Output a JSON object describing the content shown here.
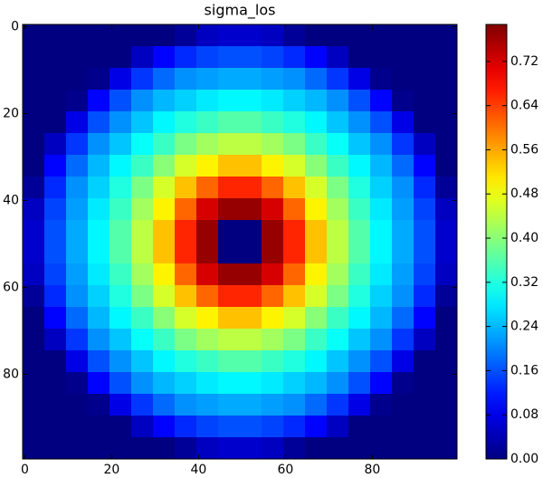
{
  "chart_data": {
    "type": "heatmap",
    "title": "sigma_los",
    "xlim": [
      -0.5,
      99.5
    ],
    "ylim": [
      99.5,
      -0.5
    ],
    "xticks": [
      0,
      20,
      40,
      60,
      80
    ],
    "yticks": [
      0,
      20,
      40,
      60,
      80
    ],
    "colormap": "jet",
    "clim": [
      0,
      0.787
    ],
    "colorbar_ticks": [
      {
        "value": 0,
        "label": "0.00"
      },
      {
        "value": 0.08,
        "label": "0.08"
      },
      {
        "value": 0.16,
        "label": "0.16"
      },
      {
        "value": 0.24,
        "label": "0.24"
      },
      {
        "value": 0.32,
        "label": "0.32"
      },
      {
        "value": 0.4,
        "label": "0.40"
      },
      {
        "value": 0.48,
        "label": "0.48"
      },
      {
        "value": 0.56,
        "label": "0.56"
      },
      {
        "value": 0.64,
        "label": "0.64"
      },
      {
        "value": 0.72,
        "label": "0.72"
      }
    ],
    "values": [
      [
        0,
        0,
        0,
        0,
        0,
        0,
        0,
        0.02,
        0.05,
        0.06,
        0.06,
        0.05,
        0.02,
        0,
        0,
        0,
        0,
        0,
        0,
        0
      ],
      [
        0,
        0,
        0,
        0,
        0,
        0.05,
        0.1,
        0.13,
        0.15,
        0.16,
        0.16,
        0.15,
        0.13,
        0.1,
        0.05,
        0,
        0,
        0,
        0,
        0
      ],
      [
        0,
        0,
        0,
        0.01,
        0.08,
        0.14,
        0.18,
        0.21,
        0.22,
        0.23,
        0.23,
        0.22,
        0.21,
        0.18,
        0.14,
        0.08,
        0.01,
        0,
        0,
        0
      ],
      [
        0,
        0,
        0.01,
        0.1,
        0.16,
        0.21,
        0.24,
        0.26,
        0.28,
        0.29,
        0.29,
        0.28,
        0.26,
        0.24,
        0.21,
        0.16,
        0.1,
        0.01,
        0,
        0
      ],
      [
        0,
        0,
        0.08,
        0.16,
        0.21,
        0.25,
        0.29,
        0.32,
        0.34,
        0.36,
        0.36,
        0.34,
        0.32,
        0.29,
        0.25,
        0.21,
        0.16,
        0.08,
        0,
        0
      ],
      [
        0,
        0.05,
        0.14,
        0.21,
        0.25,
        0.3,
        0.34,
        0.39,
        0.42,
        0.44,
        0.44,
        0.42,
        0.39,
        0.34,
        0.3,
        0.25,
        0.21,
        0.14,
        0.05,
        0
      ],
      [
        0,
        0.1,
        0.18,
        0.24,
        0.29,
        0.34,
        0.4,
        0.46,
        0.5,
        0.54,
        0.54,
        0.5,
        0.46,
        0.4,
        0.34,
        0.29,
        0.24,
        0.18,
        0.1,
        0
      ],
      [
        0.02,
        0.13,
        0.21,
        0.26,
        0.32,
        0.39,
        0.46,
        0.54,
        0.61,
        0.66,
        0.66,
        0.61,
        0.54,
        0.46,
        0.39,
        0.32,
        0.26,
        0.21,
        0.13,
        0.02
      ],
      [
        0.05,
        0.15,
        0.22,
        0.28,
        0.34,
        0.42,
        0.5,
        0.61,
        0.72,
        0.77,
        0.77,
        0.72,
        0.61,
        0.5,
        0.42,
        0.34,
        0.28,
        0.22,
        0.15,
        0.05
      ],
      [
        0.06,
        0.16,
        0.23,
        0.29,
        0.36,
        0.44,
        0.54,
        0.66,
        0.77,
        0,
        0,
        0.77,
        0.66,
        0.54,
        0.44,
        0.36,
        0.29,
        0.23,
        0.16,
        0.06
      ],
      [
        0.06,
        0.16,
        0.23,
        0.29,
        0.36,
        0.44,
        0.54,
        0.66,
        0.77,
        0,
        0,
        0.77,
        0.66,
        0.54,
        0.44,
        0.36,
        0.29,
        0.23,
        0.16,
        0.06
      ],
      [
        0.05,
        0.15,
        0.22,
        0.28,
        0.34,
        0.42,
        0.5,
        0.61,
        0.72,
        0.77,
        0.77,
        0.72,
        0.61,
        0.5,
        0.42,
        0.34,
        0.28,
        0.22,
        0.15,
        0.05
      ],
      [
        0.02,
        0.13,
        0.21,
        0.26,
        0.32,
        0.39,
        0.46,
        0.54,
        0.61,
        0.66,
        0.66,
        0.61,
        0.54,
        0.46,
        0.39,
        0.32,
        0.26,
        0.21,
        0.13,
        0.02
      ],
      [
        0,
        0.1,
        0.18,
        0.24,
        0.29,
        0.34,
        0.4,
        0.46,
        0.5,
        0.54,
        0.54,
        0.5,
        0.46,
        0.4,
        0.34,
        0.29,
        0.24,
        0.18,
        0.1,
        0
      ],
      [
        0,
        0.05,
        0.14,
        0.21,
        0.25,
        0.3,
        0.34,
        0.39,
        0.42,
        0.44,
        0.44,
        0.42,
        0.39,
        0.34,
        0.3,
        0.25,
        0.21,
        0.14,
        0.05,
        0
      ],
      [
        0,
        0,
        0.08,
        0.16,
        0.21,
        0.25,
        0.29,
        0.32,
        0.34,
        0.36,
        0.36,
        0.34,
        0.32,
        0.29,
        0.25,
        0.21,
        0.16,
        0.08,
        0,
        0
      ],
      [
        0,
        0,
        0.01,
        0.1,
        0.16,
        0.21,
        0.24,
        0.26,
        0.28,
        0.29,
        0.29,
        0.28,
        0.26,
        0.24,
        0.21,
        0.16,
        0.1,
        0.01,
        0,
        0
      ],
      [
        0,
        0,
        0,
        0.01,
        0.08,
        0.14,
        0.18,
        0.21,
        0.22,
        0.23,
        0.23,
        0.22,
        0.21,
        0.18,
        0.14,
        0.08,
        0.01,
        0,
        0,
        0
      ],
      [
        0,
        0,
        0,
        0,
        0,
        0.05,
        0.1,
        0.13,
        0.15,
        0.16,
        0.16,
        0.15,
        0.13,
        0.1,
        0.05,
        0,
        0,
        0,
        0,
        0
      ],
      [
        0,
        0,
        0,
        0,
        0,
        0,
        0,
        0.02,
        0.05,
        0.06,
        0.06,
        0.05,
        0.02,
        0,
        0,
        0,
        0,
        0,
        0,
        0
      ]
    ]
  }
}
